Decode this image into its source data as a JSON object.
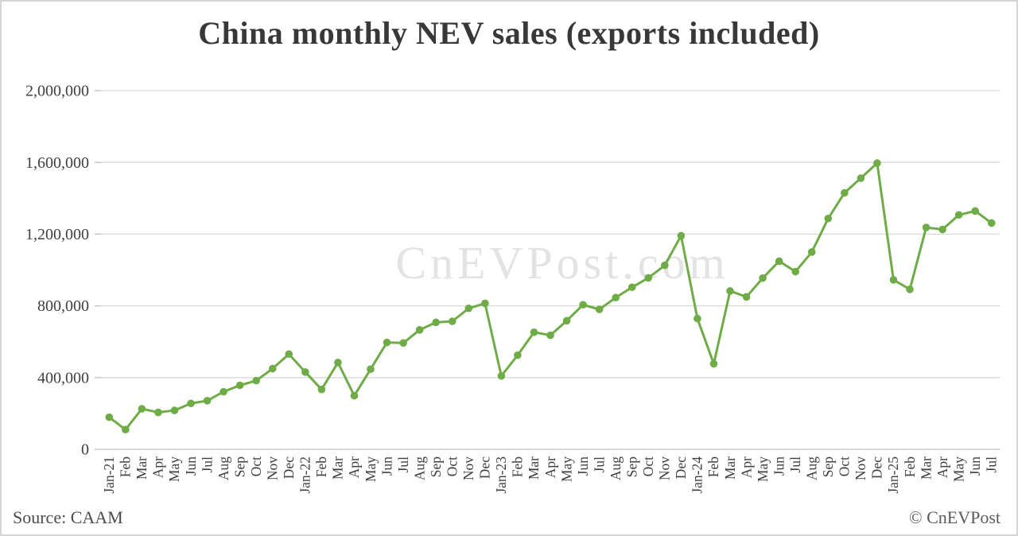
{
  "chart": {
    "title": "China monthly NEV sales (exports included)",
    "watermark": "CnEVPost.com",
    "source": "Source: CAAM",
    "credit": "© CnEVPost"
  },
  "chart_data": {
    "type": "line",
    "title": "China monthly NEV sales (exports included)",
    "series_name": "China monthly NEV sales",
    "categories": [
      "Jan-21",
      "Feb",
      "Mar",
      "Apr",
      "May",
      "Jun",
      "Jul",
      "Aug",
      "Sep",
      "Oct",
      "Nov",
      "Dec",
      "Jan-22",
      "Feb",
      "Mar",
      "Apr",
      "May",
      "Jun",
      "Jul",
      "Aug",
      "Sep",
      "Oct",
      "Nov",
      "Dec",
      "Jan-23",
      "Feb",
      "Mar",
      "Apr",
      "May",
      "Jun",
      "Jul",
      "Aug",
      "Sep",
      "Oct",
      "Nov",
      "Dec",
      "Jan-24",
      "Feb",
      "Mar",
      "Apr",
      "May",
      "Jun",
      "Jul",
      "Aug",
      "Sep",
      "Oct",
      "Nov",
      "Dec",
      "Jan-25",
      "Feb",
      "Mar",
      "Apr",
      "May",
      "Jun",
      "Jul"
    ],
    "values": [
      179000,
      110000,
      226000,
      206000,
      217000,
      256000,
      271000,
      321000,
      357000,
      383000,
      450000,
      531000,
      431000,
      334000,
      484000,
      299000,
      447000,
      596000,
      593000,
      666000,
      708000,
      714000,
      786000,
      814000,
      409000,
      525000,
      653000,
      636000,
      717000,
      806000,
      780000,
      846000,
      904000,
      956000,
      1026000,
      1191000,
      729000,
      477000,
      883000,
      850000,
      955000,
      1049000,
      991000,
      1100000,
      1287000,
      1430000,
      1512000,
      1596000,
      945000,
      892000,
      1237000,
      1226000,
      1307000,
      1329000,
      1262000
    ],
    "ylim": [
      0,
      2000000
    ],
    "y_ticks": [
      0,
      400000,
      800000,
      1200000,
      1600000,
      2000000
    ],
    "y_tick_labels": [
      "0",
      "400,000",
      "800,000",
      "1,200,000",
      "1,600,000",
      "2,000,000"
    ],
    "grid": true,
    "legend": "none",
    "line_color": "#6FAC47",
    "grid_color": "#D9D9D9",
    "axis_color": "#BFBFBF",
    "label_color": "#3F3F3F",
    "watermark_color": "#E3E3E3"
  }
}
